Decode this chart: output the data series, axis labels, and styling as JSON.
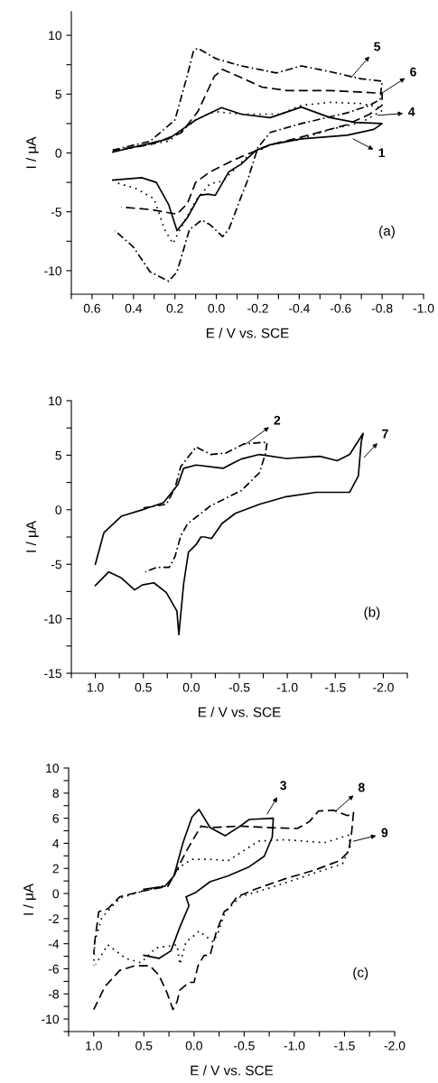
{
  "chart_data": [
    {
      "type": "line",
      "xlabel": "E / V vs. SCE",
      "ylabel": "I / μA",
      "xlim": [
        0.7,
        -1.0
      ],
      "ylim": [
        -12,
        12
      ],
      "xticks": [
        {
          "value": 0.7,
          "label": null
        },
        0.6,
        {
          "value": 0.5,
          "label": null
        },
        0.4,
        {
          "value": 0.3,
          "label": null
        },
        0.2,
        {
          "value": 0.1,
          "label": null
        },
        {
          "value": 0,
          "label": "0.0"
        },
        {
          "value": -0.1,
          "label": null
        },
        -0.2,
        {
          "value": -0.3,
          "label": null
        },
        -0.4,
        {
          "value": -0.5,
          "label": null
        },
        -0.6,
        {
          "value": -0.7,
          "label": null
        },
        -0.8,
        {
          "value": -0.9,
          "label": null
        },
        {
          "value": -1.0,
          "label": "-1.0"
        }
      ],
      "yticks": [
        -10,
        {
          "value": -7.5,
          "label": null
        },
        -5,
        {
          "value": -2.5,
          "label": null
        },
        0,
        {
          "value": 2.5,
          "label": null
        },
        5,
        {
          "value": 7.5,
          "label": null
        },
        10
      ],
      "series": [
        {
          "color": "#000000",
          "line_style": "solid",
          "x": [
            0.5,
            0.23,
            0.1,
            -0.025,
            -0.12,
            -0.26,
            -0.41,
            -0.55,
            -0.67,
            -0.8,
            -0.76,
            -0.63,
            -0.41,
            -0.26,
            -0.19,
            -0.12,
            -0.06,
            0.005,
            0.04,
            0.08,
            0.14,
            0.19,
            0.23,
            0.29,
            0.36,
            0.5
          ],
          "values": [
            0.08,
            1.2,
            2.8,
            3.85,
            3.3,
            3.0,
            3.9,
            3.0,
            2.6,
            2.5,
            2.0,
            1.5,
            1.2,
            0.7,
            0.2,
            -0.95,
            -1.6,
            -3.6,
            -3.5,
            -3.6,
            -5.5,
            -6.6,
            -4.4,
            -2.5,
            -2.1,
            -2.3
          ]
        },
        {
          "color": "#000000",
          "line_style": "dotted",
          "x": [
            0.5,
            0.23,
            0.1,
            0.03,
            0.0,
            -0.12,
            -0.31,
            -0.41,
            -0.55,
            -0.7,
            -0.78,
            -0.8,
            -0.7,
            -0.55,
            -0.41,
            -0.26,
            -0.15,
            -0.03,
            0.03,
            0.1,
            0.19,
            0.21,
            0.25,
            0.3,
            0.39,
            0.49
          ],
          "values": [
            0.2,
            1.0,
            2.8,
            3.4,
            3.5,
            3.3,
            3.3,
            4.05,
            4.3,
            4.2,
            3.9,
            3.6,
            2.6,
            2.0,
            1.2,
            0.7,
            -0.3,
            -2.4,
            -2.6,
            -4.05,
            -7.0,
            -7.7,
            -6.5,
            -3.9,
            -3.0,
            -2.5
          ]
        },
        {
          "color": "#000000",
          "line_style": "dashed",
          "x": [
            0.5,
            0.32,
            0.17,
            0.09,
            0.01,
            -0.03,
            -0.12,
            -0.22,
            -0.34,
            -0.55,
            -0.77,
            -0.8,
            -0.8,
            -0.74,
            -0.63,
            -0.41,
            -0.26,
            -0.09,
            0.03,
            0.1,
            0.14,
            0.19,
            0.32,
            0.46
          ],
          "values": [
            0.2,
            0.7,
            1.7,
            3.5,
            6.5,
            7.1,
            6.4,
            5.6,
            5.3,
            5.3,
            5.1,
            5.1,
            4.05,
            3.3,
            2.4,
            1.35,
            0.7,
            -0.55,
            -1.6,
            -2.5,
            -4.3,
            -5.2,
            -4.8,
            -4.6
          ]
        },
        {
          "color": "#000000",
          "line_style": "dashdot",
          "x": [
            0.5,
            0.32,
            0.2,
            0.14,
            0.11,
            0.09,
            0.0,
            -0.12,
            -0.29,
            -0.41,
            -0.55,
            -0.7,
            -0.8,
            -0.79,
            -0.74,
            -0.63,
            -0.41,
            -0.26,
            -0.2,
            -0.15,
            -0.12,
            -0.06,
            -0.03,
            0.03,
            0.07,
            0.13,
            0.19,
            0.23,
            0.32,
            0.4,
            0.49
          ],
          "values": [
            0.25,
            1.0,
            2.8,
            6.6,
            8.7,
            8.9,
            8.0,
            7.4,
            6.8,
            7.4,
            6.9,
            6.3,
            6.1,
            4.55,
            4.05,
            3.4,
            2.5,
            1.75,
            0.45,
            -2.36,
            -3.7,
            -6.5,
            -7.1,
            -6.1,
            -5.7,
            -6.5,
            -10.1,
            -10.9,
            -10.1,
            -8.0,
            -6.6
          ]
        }
      ],
      "annotations": [
        {
          "text": "5",
          "x": -0.65,
          "y": 6.4
        },
        {
          "text": "6",
          "x": -0.8,
          "y": 5.1
        },
        {
          "text": "4",
          "x": -0.78,
          "y": 3.2
        },
        {
          "text": "1",
          "x": -0.66,
          "y": 1.2
        },
        "(a)"
      ]
    },
    {
      "type": "line",
      "xlabel": "E / V vs. SCE",
      "ylabel": "I / μA",
      "xlim": [
        1.25,
        -2.25
      ],
      "ylim": [
        -15,
        10
      ],
      "xticks": [
        {
          "value": 1.25,
          "label": null
        },
        {
          "value": 1.0,
          "label": "1.0"
        },
        {
          "value": 0.75,
          "label": null
        },
        0.5,
        {
          "value": 0.25,
          "label": null
        },
        {
          "value": 0,
          "label": "0.0"
        },
        {
          "value": -0.25,
          "label": null
        },
        -0.5,
        {
          "value": -0.75,
          "label": null
        },
        {
          "value": -1.0,
          "label": "-1.0"
        },
        {
          "value": -1.25,
          "label": null
        },
        -1.5,
        {
          "value": -1.75,
          "label": null
        },
        {
          "value": -2.0,
          "label": "-2.0"
        },
        {
          "value": -2.25,
          "label": null
        }
      ],
      "yticks": [
        -15,
        {
          "value": -12.5,
          "label": null
        },
        -10,
        {
          "value": -7.5,
          "label": null
        },
        -5,
        {
          "value": -2.5,
          "label": null
        },
        0,
        {
          "value": 2.5,
          "label": null
        },
        5,
        {
          "value": 7.5,
          "label": null
        },
        10
      ],
      "series": [
        {
          "color": "#000000",
          "line_style": "solid",
          "x": [
            1.0,
            0.92,
            0.91,
            0.73,
            0.48,
            0.29,
            0.14,
            0.08,
            -0.05,
            -0.33,
            -0.52,
            -0.71,
            -0.99,
            -1.34,
            -1.52,
            -1.65,
            -1.79,
            -1.77,
            -1.74,
            -1.65,
            -1.3,
            -0.99,
            -0.71,
            -0.46,
            -0.32,
            -0.21,
            -0.14,
            -0.1,
            -0.05,
            0.03,
            0.08,
            0.11,
            0.13,
            0.15,
            0.26,
            0.39,
            0.51,
            0.59,
            0.73,
            0.86,
            1.0
          ],
          "values": [
            -5.0,
            -2.4,
            -2.1,
            -0.6,
            0.08,
            0.64,
            2.3,
            3.8,
            4.1,
            3.8,
            4.65,
            5.07,
            4.7,
            4.9,
            4.5,
            5.07,
            7.0,
            6.2,
            3.1,
            1.6,
            1.6,
            1.2,
            0.5,
            -0.33,
            -1.26,
            -2.65,
            -2.5,
            -2.5,
            -3.2,
            -3.9,
            -6.8,
            -9.6,
            -11.45,
            -9.3,
            -7.6,
            -6.7,
            -6.9,
            -7.35,
            -6.25,
            -5.7,
            -6.95
          ]
        },
        {
          "color": "#000000",
          "line_style": "dashdot",
          "x": [
            0.5,
            0.26,
            0.17,
            0.11,
            -0.05,
            -0.2,
            -0.36,
            -0.55,
            -0.79,
            -0.77,
            -0.71,
            -0.52,
            -0.2,
            0.04,
            0.11,
            0.17,
            0.23,
            0.36,
            0.48
          ],
          "values": [
            0.17,
            0.5,
            2.0,
            3.96,
            5.76,
            5.07,
            5.2,
            6.04,
            6.2,
            5.07,
            3.4,
            1.75,
            0.36,
            -1.3,
            -2.4,
            -4.3,
            -5.28,
            -5.28,
            -5.7
          ]
        }
      ],
      "annotations": [
        {
          "text": "2",
          "x": -0.57,
          "y": 6.04
        },
        {
          "text": "7",
          "x": -1.8,
          "y": 4.8
        },
        "(b)"
      ]
    },
    {
      "type": "line",
      "xlabel": "E / V vs. SCE",
      "ylabel": "I / μA",
      "xlim": [
        1.25,
        -2.0
      ],
      "ylim": [
        -11,
        10
      ],
      "xticks": [
        {
          "value": 1.25,
          "label": null
        },
        {
          "value": 1.0,
          "label": "1.0"
        },
        {
          "value": 0.75,
          "label": null
        },
        0.5,
        {
          "value": 0.25,
          "label": null
        },
        {
          "value": 0,
          "label": "0.0"
        },
        {
          "value": -0.25,
          "label": null
        },
        -0.5,
        {
          "value": -0.75,
          "label": null
        },
        {
          "value": -1.0,
          "label": "-1.0"
        },
        {
          "value": -1.25,
          "label": null
        },
        -1.5,
        {
          "value": -1.75,
          "label": null
        },
        {
          "value": -2.0,
          "label": "-2.0"
        }
      ],
      "yticks": [
        {
          "value": -11,
          "label": null
        },
        -10,
        {
          "value": -9,
          "label": null
        },
        -8,
        {
          "value": -7,
          "label": null
        },
        -6,
        {
          "value": -5,
          "label": null
        },
        -4,
        {
          "value": -3,
          "label": null
        },
        -2,
        {
          "value": -1,
          "label": null
        },
        0,
        {
          "value": 1,
          "label": null
        },
        2,
        {
          "value": 3,
          "label": null
        },
        4,
        {
          "value": 5,
          "label": null
        },
        6,
        {
          "value": 7,
          "label": null
        },
        8,
        {
          "value": 9,
          "label": null
        },
        10
      ],
      "series": [
        {
          "color": "#000000",
          "line_style": "solid",
          "x": [
            0.5,
            0.29,
            0.2,
            0.11,
            0.02,
            -0.05,
            -0.16,
            -0.31,
            -0.46,
            -0.55,
            -0.79,
            -0.78,
            -0.7,
            -0.55,
            -0.34,
            -0.16,
            -0.02,
            0.08,
            0.05,
            0.14,
            0.23,
            0.35,
            0.5
          ],
          "values": [
            0.34,
            0.58,
            1.4,
            4.05,
            6.1,
            6.7,
            5.25,
            4.6,
            5.37,
            5.9,
            6.0,
            4.5,
            2.97,
            2.13,
            1.41,
            0.94,
            0.1,
            -0.26,
            -0.97,
            -2.65,
            -4.57,
            -5.17,
            -4.93
          ]
        },
        {
          "color": "#000000",
          "line_style": "dashed",
          "x": [
            1.0,
            0.89,
            0.74,
            0.59,
            0.44,
            0.35,
            0.27,
            0.21,
            0.17,
            0.14,
            0.05,
            0.0,
            -0.04,
            -0.1,
            -0.16,
            -0.22,
            -0.3,
            -0.34,
            -0.43,
            -0.61,
            -0.91,
            -1.21,
            -1.45,
            -1.54,
            -1.57,
            -1.59,
            -1.53,
            -1.39,
            -1.24,
            -1.15,
            -1.03,
            -0.76,
            -0.46,
            -0.16,
            -0.07,
            0.08,
            0.17,
            0.26,
            0.5,
            0.74,
            0.86,
            0.95,
            0.99,
            1.0
          ],
          "values": [
            -9.24,
            -7.44,
            -6.12,
            -5.76,
            -5.76,
            -6.5,
            -7.9,
            -9.24,
            -8.64,
            -7.68,
            -7.08,
            -7.08,
            -5.76,
            -4.93,
            -4.93,
            -3.13,
            -1.45,
            -1.22,
            -0.26,
            0.34,
            1.18,
            1.89,
            2.61,
            3.33,
            4.77,
            6.45,
            6.2,
            6.64,
            6.57,
            5.73,
            5.18,
            5.25,
            5.37,
            5.25,
            5.37,
            3.33,
            1.9,
            0.58,
            0.22,
            -0.26,
            -1.22,
            -1.45,
            -3.85,
            -4.8
          ]
        },
        {
          "color": "#000000",
          "line_style": "dotted",
          "x": [
            1.0,
            0.99,
            0.92,
            0.74,
            0.5,
            0.26,
            0.14,
            0.02,
            -0.16,
            -0.34,
            -0.64,
            -0.91,
            -1.3,
            -1.54,
            -1.56,
            -1.48,
            -1.21,
            -0.76,
            -0.46,
            -0.34,
            -0.3,
            -0.24,
            -0.19,
            -0.05,
            0.02,
            0.08,
            0.14,
            0.17,
            0.38,
            0.53,
            0.68,
            0.86,
            0.98
          ],
          "values": [
            -5.76,
            -3.85,
            -1.93,
            -0.38,
            0.22,
            0.7,
            2.13,
            2.73,
            2.73,
            2.61,
            4.17,
            4.29,
            4.05,
            4.65,
            3.81,
            2.37,
            1.65,
            0.46,
            -0.26,
            -1.22,
            -1.69,
            -3.13,
            -3.85,
            -3.0,
            -3.49,
            -3.85,
            -5.64,
            -4.09,
            -4.33,
            -5.52,
            -5.17,
            -4.09,
            -5.64
          ]
        }
      ],
      "annotations": [
        {
          "text": "3",
          "x": -0.73,
          "y": 6.33
        },
        {
          "text": "8",
          "x": -1.41,
          "y": 6.57
        },
        {
          "text": "9",
          "x": -1.59,
          "y": 4.17
        },
        "(c)"
      ]
    }
  ]
}
